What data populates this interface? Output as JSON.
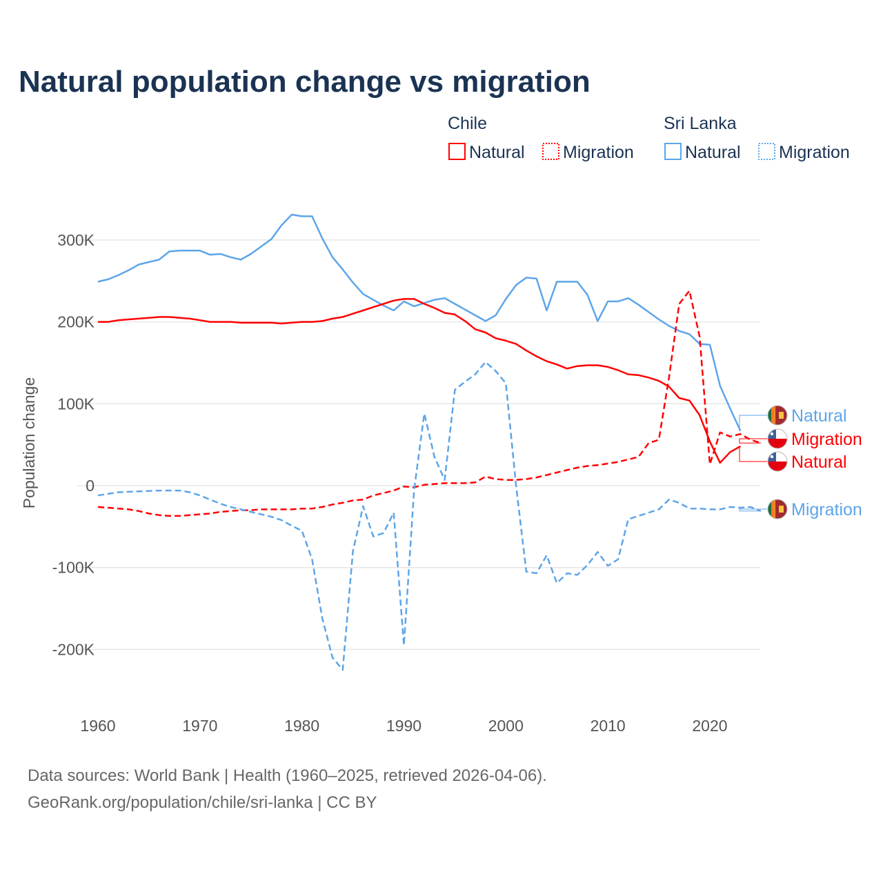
{
  "title": "Natural population change vs migration",
  "legend": {
    "groups": [
      {
        "name": "Chile",
        "items": [
          "Natural",
          "Migration"
        ],
        "color": "#ff0000"
      },
      {
        "name": "Sri Lanka",
        "items": [
          "Natural",
          "Migration"
        ],
        "color": "#5da5e8"
      }
    ]
  },
  "footer": {
    "line1": "Data sources: World Bank | Health (1960–2025, retrieved 2026-04-06).",
    "line2": "GeoRank.org/population/chile/sri-lanka | CC BY"
  },
  "chart_data": {
    "type": "line",
    "title": "Natural population change vs migration",
    "xlabel": "",
    "ylabel": "Population change",
    "xlim": [
      1960,
      2025
    ],
    "ylim": [
      -250000,
      340000
    ],
    "x_ticks": [
      1960,
      1970,
      1980,
      1990,
      2000,
      2010,
      2020
    ],
    "x_tick_labels": [
      "1960",
      "1970",
      "1980",
      "1990",
      "2000",
      "2010",
      "2020"
    ],
    "y_ticks": [
      300000,
      200000,
      100000,
      0,
      -100000,
      -200000
    ],
    "y_tick_labels": [
      "300K",
      "200K",
      "100K",
      "0",
      "-100K",
      "-200K"
    ],
    "grid": true,
    "legend_position": "top-right",
    "series": [
      {
        "name": "Sri Lanka Natural",
        "end_label": "Natural",
        "country": "Sri Lanka",
        "color": "#5da5e8",
        "dash": "solid",
        "start_year": 1960,
        "values_k": [
          249,
          252,
          257,
          263,
          270,
          273,
          276,
          286,
          287,
          287,
          287,
          282,
          283,
          279,
          276,
          283,
          292,
          301,
          318,
          331,
          329,
          329,
          302,
          279,
          264,
          248,
          234,
          227,
          220,
          214,
          225,
          219,
          223,
          227,
          229,
          222,
          215,
          208,
          201,
          208,
          228,
          245,
          254,
          253,
          214,
          249,
          249,
          249,
          233,
          201,
          225,
          225,
          229,
          221,
          212,
          203,
          195,
          189,
          185,
          173,
          172,
          122,
          94,
          67
        ]
      },
      {
        "name": "Chile Migration",
        "end_label": "Migration",
        "country": "Chile",
        "color": "#ff0000",
        "dash": "dashed",
        "start_year": 1960,
        "values_k": [
          -26,
          -27,
          -28,
          -29,
          -31,
          -34,
          -36,
          -37,
          -37,
          -36,
          -35,
          -34,
          -32,
          -31,
          -30,
          -30,
          -29,
          -29,
          -29,
          -29,
          -28,
          -28,
          -26,
          -23,
          -21,
          -18,
          -17,
          -12,
          -9,
          -6,
          -1,
          -2,
          1,
          2,
          3,
          3,
          3,
          4,
          11,
          8,
          7,
          7,
          8,
          10,
          13,
          16,
          19,
          22,
          24,
          25,
          27,
          29,
          32,
          35,
          52,
          56,
          132,
          222,
          238,
          182,
          26,
          65,
          60,
          63,
          56,
          52
        ]
      },
      {
        "name": "Chile Natural",
        "end_label": "Natural",
        "country": "Chile",
        "color": "#ff0000",
        "dash": "solid",
        "start_year": 1960,
        "values_k": [
          200,
          200,
          202,
          203,
          204,
          205,
          206,
          206,
          205,
          204,
          202,
          200,
          200,
          200,
          199,
          199,
          199,
          199,
          198,
          199,
          200,
          200,
          201,
          204,
          206,
          210,
          214,
          218,
          222,
          226,
          228,
          228,
          222,
          217,
          211,
          209,
          201,
          191,
          187,
          180,
          177,
          173,
          165,
          158,
          152,
          148,
          143,
          146,
          147,
          147,
          145,
          141,
          136,
          135,
          132,
          128,
          121,
          107,
          104,
          86,
          54,
          28,
          41,
          48
        ]
      },
      {
        "name": "Sri Lanka Migration",
        "end_label": "Migration",
        "country": "Sri Lanka",
        "color": "#5da5e8",
        "dash": "dashed",
        "start_year": 1960,
        "values_k": [
          -12,
          -10,
          -8,
          -7.5,
          -7,
          -6.5,
          -6,
          -6,
          -6,
          -8,
          -12,
          -17,
          -22,
          -26,
          -29,
          -32,
          -35,
          -38,
          -42,
          -49,
          -55,
          -90,
          -162,
          -210,
          -225,
          -80,
          -25,
          -62,
          -58,
          -33,
          -195,
          -5,
          88,
          35,
          7,
          117,
          127,
          136,
          151,
          140,
          125,
          0,
          -105,
          -107,
          -85,
          -119,
          -107,
          -109,
          -97,
          -81,
          -98,
          -90,
          -41,
          -37,
          -33,
          -29,
          -17,
          -21,
          -28,
          -28,
          -29,
          -29,
          -26,
          -27,
          -26,
          -31
        ]
      }
    ]
  }
}
